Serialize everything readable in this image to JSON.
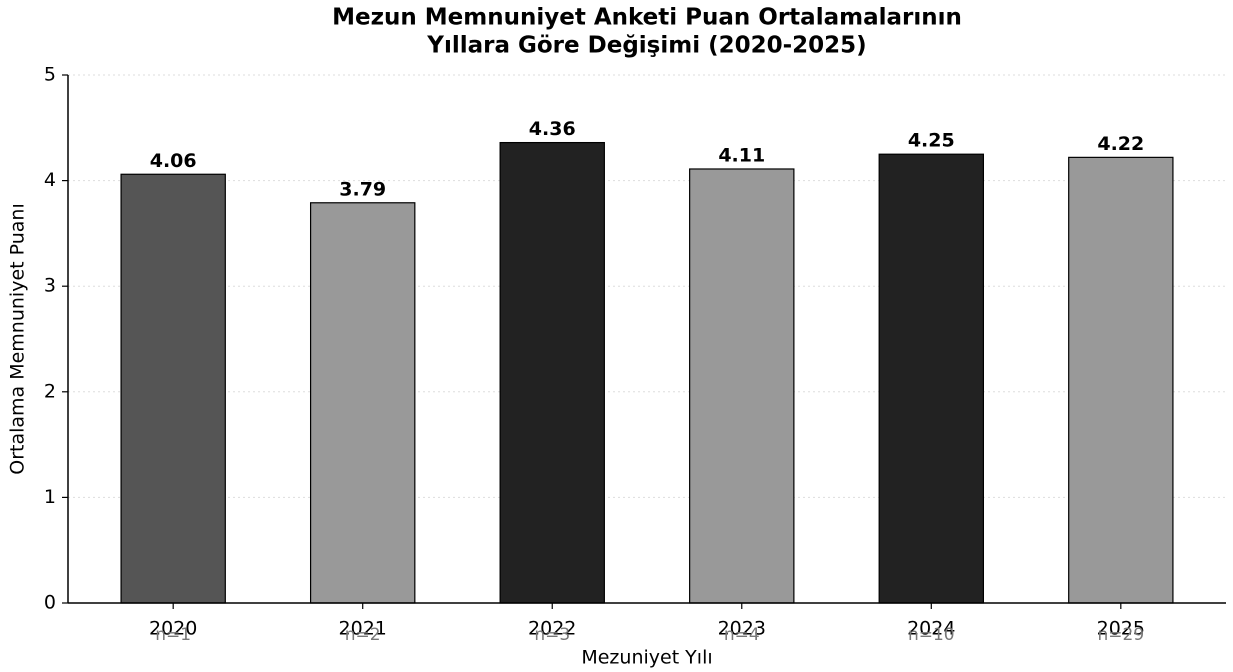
{
  "chart_data": {
    "type": "bar",
    "title": [
      "Mezun Memnuniyet Anketi Puan Ortalamalarının",
      "Yıllara Göre Değişimi (2020-2025)"
    ],
    "x_label": "Mezuniyet Yılı",
    "y_label": "Ortalama Memnuniyet Puanı",
    "categories": [
      "2020",
      "2021",
      "2022",
      "2023",
      "2024",
      "2025"
    ],
    "values": [
      4.06,
      3.79,
      4.36,
      4.11,
      4.25,
      4.22
    ],
    "colors": [
      "#555555",
      "#999999",
      "#222222",
      "#999999",
      "#222222",
      "#999999"
    ],
    "annotations": [
      "n=1",
      "n=2",
      "n=3",
      "n=4",
      "n=10",
      "n=29"
    ],
    "ylim": [
      0,
      5
    ],
    "yticks": [
      0,
      1,
      2,
      3,
      4,
      5
    ],
    "grid": true
  }
}
